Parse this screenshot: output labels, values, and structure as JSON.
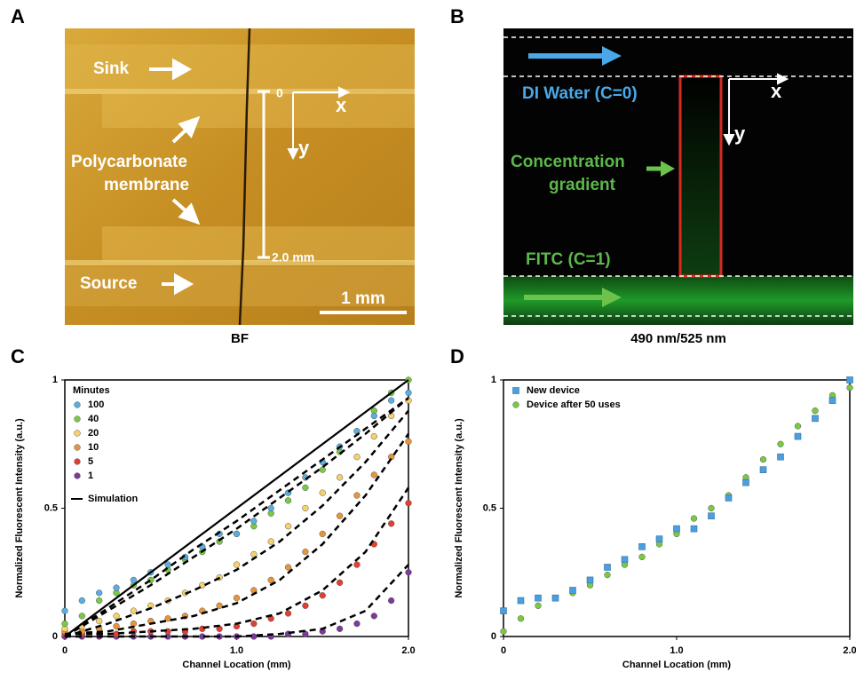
{
  "panels": {
    "a": {
      "letter": "A",
      "caption": "BF",
      "sink": "Sink",
      "membrane": [
        "Polycarbonate",
        "membrane"
      ],
      "source": "Source",
      "origin": "0",
      "x_axis": "x",
      "y_axis": "y",
      "length": "2.0 mm",
      "scale": "1 mm"
    },
    "b": {
      "letter": "B",
      "caption": "490 nm/525 nm",
      "water": "DI Water (C=0)",
      "gradient": [
        "Concentration",
        "gradient"
      ],
      "fitc": "FITC (C=1)",
      "x_axis": "x",
      "y_axis": "y"
    }
  },
  "chart_data": [
    {
      "type": "scatter",
      "letter": "C",
      "xlabel": "Channel Location (mm)",
      "ylabel": "Normalized Fluorescent Intensity (a.u.)",
      "xlim": [
        0,
        2
      ],
      "ylim": [
        0,
        1
      ],
      "xticks": [
        0,
        {
          "value": 1,
          "label": "1.0"
        },
        {
          "value": 2,
          "label": "2.0"
        }
      ],
      "yticks": [
        0,
        0.5,
        1
      ],
      "legend_title": "Minutes",
      "marker": "circle",
      "series": [
        {
          "name": "100",
          "color": "#5aaee0",
          "x": [
            0,
            0.1,
            0.2,
            0.3,
            0.4,
            0.5,
            0.6,
            0.7,
            0.8,
            0.9,
            1,
            1.1,
            1.2,
            1.3,
            1.4,
            1.5,
            1.6,
            1.7,
            1.8,
            1.9,
            2
          ],
          "values": [
            0.1,
            0.14,
            0.17,
            0.19,
            0.22,
            0.25,
            0.28,
            0.31,
            0.35,
            0.4,
            0.4,
            0.45,
            0.5,
            0.56,
            0.62,
            0.68,
            0.74,
            0.8,
            0.86,
            0.92,
            0.95
          ]
        },
        {
          "name": "40",
          "color": "#7ac943",
          "x": [
            0,
            0.1,
            0.2,
            0.3,
            0.4,
            0.5,
            0.6,
            0.7,
            0.8,
            0.9,
            1,
            1.1,
            1.2,
            1.3,
            1.4,
            1.5,
            1.6,
            1.7,
            1.8,
            1.9,
            2
          ],
          "values": [
            0.05,
            0.08,
            0.14,
            0.17,
            0.2,
            0.22,
            0.26,
            0.3,
            0.33,
            0.37,
            0.4,
            0.43,
            0.48,
            0.53,
            0.58,
            0.65,
            0.72,
            0.8,
            0.88,
            0.95,
            1
          ]
        },
        {
          "name": "20",
          "color": "#f5d26b",
          "x": [
            0,
            0.1,
            0.2,
            0.3,
            0.4,
            0.5,
            0.6,
            0.7,
            0.8,
            0.9,
            1,
            1.1,
            1.2,
            1.3,
            1.4,
            1.5,
            1.6,
            1.7,
            1.8,
            1.9,
            2
          ],
          "values": [
            0.03,
            0.04,
            0.06,
            0.08,
            0.1,
            0.12,
            0.14,
            0.17,
            0.2,
            0.23,
            0.28,
            0.32,
            0.37,
            0.43,
            0.5,
            0.56,
            0.62,
            0.7,
            0.78,
            0.86,
            0.92
          ]
        },
        {
          "name": "10",
          "color": "#e8953a",
          "x": [
            0,
            0.1,
            0.2,
            0.3,
            0.4,
            0.5,
            0.6,
            0.7,
            0.8,
            0.9,
            1,
            1.1,
            1.2,
            1.3,
            1.4,
            1.5,
            1.6,
            1.7,
            1.8,
            1.9,
            2
          ],
          "values": [
            0.02,
            0.02,
            0.03,
            0.04,
            0.05,
            0.06,
            0.07,
            0.08,
            0.1,
            0.12,
            0.15,
            0.18,
            0.22,
            0.27,
            0.33,
            0.4,
            0.47,
            0.55,
            0.63,
            0.7,
            0.76
          ]
        },
        {
          "name": "5",
          "color": "#e53d2e",
          "x": [
            0,
            0.1,
            0.2,
            0.3,
            0.4,
            0.5,
            0.6,
            0.7,
            0.8,
            0.9,
            1,
            1.1,
            1.2,
            1.3,
            1.4,
            1.5,
            1.6,
            1.7,
            1.8,
            1.9,
            2
          ],
          "values": [
            0.01,
            0.01,
            0.01,
            0.01,
            0.02,
            0.02,
            0.02,
            0.02,
            0.03,
            0.03,
            0.04,
            0.05,
            0.07,
            0.09,
            0.12,
            0.16,
            0.21,
            0.28,
            0.36,
            0.44,
            0.52
          ]
        },
        {
          "name": "1",
          "color": "#7b3a9c",
          "x": [
            0,
            0.1,
            0.2,
            0.3,
            0.4,
            0.5,
            0.6,
            0.7,
            0.8,
            0.9,
            1,
            1.1,
            1.2,
            1.3,
            1.4,
            1.5,
            1.6,
            1.7,
            1.8,
            1.9,
            2
          ],
          "values": [
            0,
            0,
            0,
            0,
            0,
            0,
            0,
            0,
            0,
            0,
            0,
            0,
            0,
            0.01,
            0.01,
            0.02,
            0.03,
            0.05,
            0.08,
            0.14,
            0.25
          ]
        }
      ],
      "simulation": {
        "name": "Simulation",
        "color": "#000000",
        "curves": [
          {
            "style": "solid",
            "x": [
              0,
              2
            ],
            "values": [
              0,
              1
            ]
          },
          {
            "style": "dashed",
            "x": [
              0,
              0.25,
              0.5,
              0.75,
              1,
              1.25,
              1.5,
              1.75,
              2
            ],
            "values": [
              0,
              0.11,
              0.22,
              0.34,
              0.45,
              0.57,
              0.69,
              0.81,
              0.93
            ]
          },
          {
            "style": "dashed",
            "x": [
              0,
              0.25,
              0.5,
              0.75,
              1,
              1.25,
              1.5,
              1.75,
              2
            ],
            "values": [
              0,
              0.1,
              0.2,
              0.31,
              0.42,
              0.54,
              0.66,
              0.79,
              0.93
            ]
          },
          {
            "style": "dashed",
            "x": [
              0,
              0.25,
              0.5,
              0.75,
              1,
              1.25,
              1.5,
              1.75,
              2
            ],
            "values": [
              0,
              0.05,
              0.11,
              0.18,
              0.26,
              0.37,
              0.51,
              0.68,
              0.88
            ]
          },
          {
            "style": "dashed",
            "x": [
              0,
              0.25,
              0.5,
              0.75,
              1,
              1.25,
              1.5,
              1.75,
              2
            ],
            "values": [
              0.01,
              0.02,
              0.05,
              0.08,
              0.13,
              0.22,
              0.36,
              0.55,
              0.79
            ]
          },
          {
            "style": "dashed",
            "x": [
              0,
              0.25,
              0.5,
              0.75,
              1,
              1.25,
              1.5,
              1.75,
              2
            ],
            "values": [
              0.01,
              0.01,
              0.02,
              0.03,
              0.05,
              0.09,
              0.18,
              0.33,
              0.58
            ]
          },
          {
            "style": "dashed",
            "x": [
              0,
              0.25,
              0.5,
              0.75,
              1,
              1.25,
              1.5,
              1.75,
              2
            ],
            "values": [
              0,
              0,
              0,
              0,
              0,
              0.01,
              0.03,
              0.1,
              0.28
            ]
          }
        ]
      }
    },
    {
      "type": "scatter",
      "letter": "D",
      "xlabel": "Channel Location (mm)",
      "ylabel": "Normalized Fluorescent Intensity (a.u.)",
      "xlim": [
        0,
        2
      ],
      "ylim": [
        0,
        1
      ],
      "xticks": [
        0,
        {
          "value": 1,
          "label": "1.0"
        },
        {
          "value": 2,
          "label": "2.0"
        }
      ],
      "yticks": [
        0,
        0.5,
        1
      ],
      "series": [
        {
          "name": "New device",
          "color": "#4a9fe0",
          "marker": "square",
          "x": [
            0,
            0.1,
            0.2,
            0.3,
            0.4,
            0.5,
            0.6,
            0.7,
            0.8,
            0.9,
            1,
            1.1,
            1.2,
            1.3,
            1.4,
            1.5,
            1.6,
            1.7,
            1.8,
            1.9,
            2
          ],
          "values": [
            0.1,
            0.14,
            0.15,
            0.15,
            0.18,
            0.22,
            0.27,
            0.3,
            0.35,
            0.38,
            0.42,
            0.42,
            0.47,
            0.54,
            0.6,
            0.65,
            0.7,
            0.78,
            0.85,
            0.92,
            1
          ]
        },
        {
          "name": "Device after 50 uses",
          "color": "#7ac943",
          "marker": "circle",
          "x": [
            0,
            0.1,
            0.2,
            0.3,
            0.4,
            0.5,
            0.6,
            0.7,
            0.8,
            0.9,
            1,
            1.1,
            1.2,
            1.3,
            1.4,
            1.5,
            1.6,
            1.7,
            1.8,
            1.9,
            2
          ],
          "values": [
            0.02,
            0.07,
            0.12,
            0.15,
            0.17,
            0.2,
            0.24,
            0.28,
            0.31,
            0.36,
            0.4,
            0.46,
            0.5,
            0.55,
            0.62,
            0.69,
            0.75,
            0.82,
            0.88,
            0.94,
            0.97
          ]
        }
      ]
    }
  ]
}
